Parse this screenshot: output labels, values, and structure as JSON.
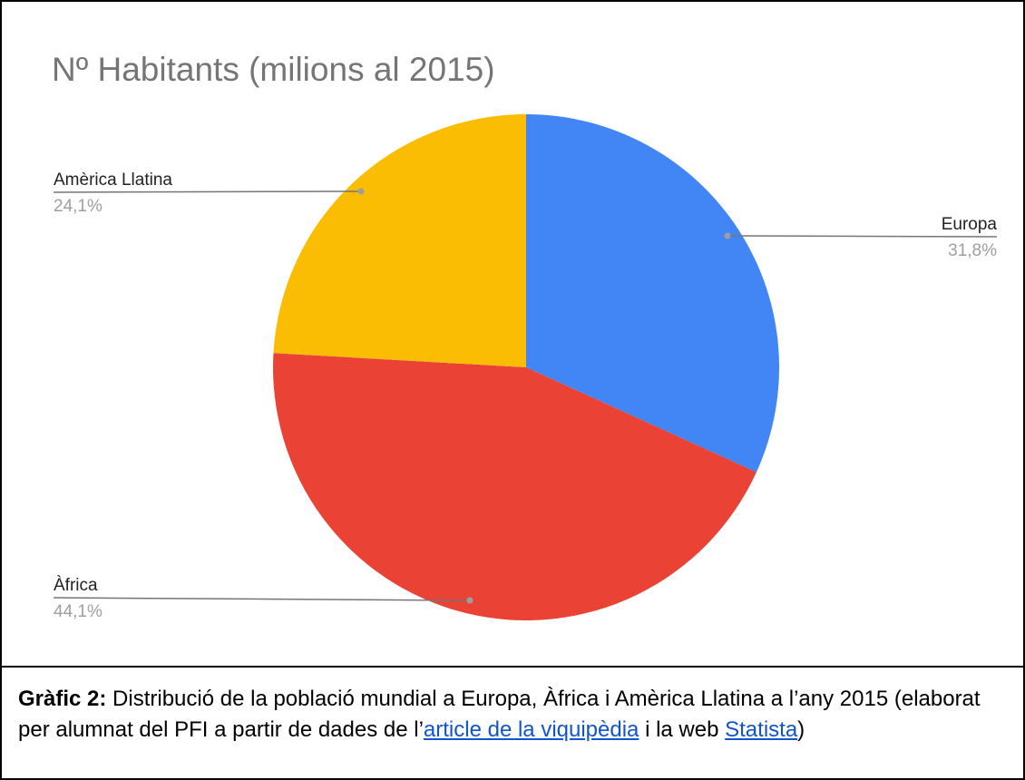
{
  "chart_data": {
    "type": "pie",
    "title": "Nº Habitants (milions al 2015)",
    "slices": [
      {
        "label": "Europa",
        "value": 31.8,
        "value_label": "31,8%",
        "color": "#4285f4"
      },
      {
        "label": "Àfrica",
        "value": 44.1,
        "value_label": "44,1%",
        "color": "#ea4335"
      },
      {
        "label": "Amèrica Llatina",
        "value": 24.1,
        "value_label": "24,1%",
        "color": "#fbbc04"
      }
    ],
    "start_angle_deg": 0,
    "direction": "clockwise",
    "legend": "labels-with-leader-lines"
  },
  "caption": {
    "label": "Gràfic 2:",
    "text_1": " Distribució de la població mundial a Europa, Àfrica i Amèrica Llatina a l’any 2015 (elaborat per alumnat del PFI a partir de dades de l’",
    "link_1": "article de la viquipèdia",
    "text_2": " i la web ",
    "link_2": "Statista",
    "text_3": ")",
    "link_color": "#1155cc"
  }
}
